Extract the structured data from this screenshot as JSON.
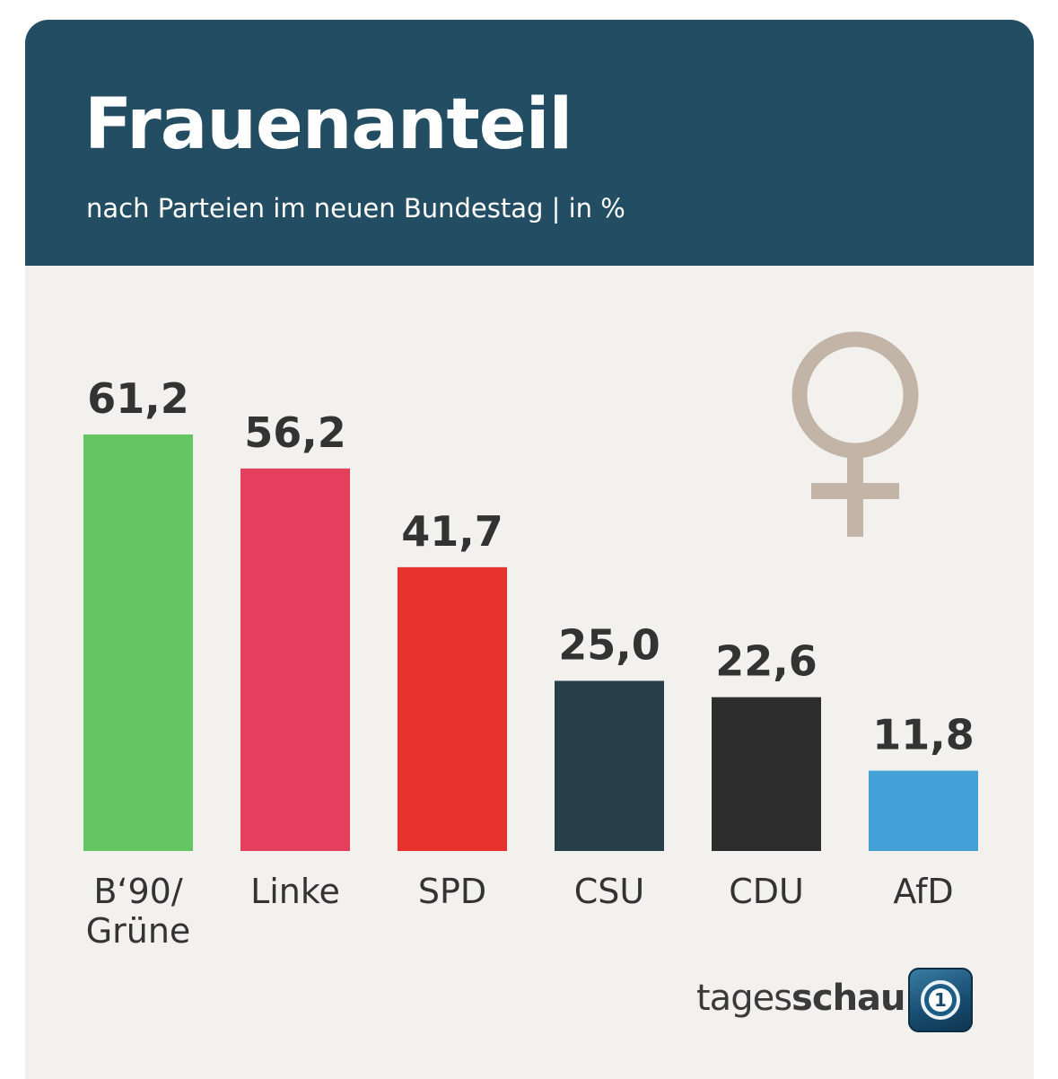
{
  "header": {
    "title": "Frauenanteil",
    "subtitle": "nach Parteien im neuen Bundestag | in %"
  },
  "brand": {
    "prefix": "tages",
    "suffix": "schau",
    "logo_glyph": "1"
  },
  "icons": {
    "female_symbol": "venus-icon",
    "female_symbol_color": "#c2b4a6"
  },
  "chart_data": {
    "type": "bar",
    "title": "Frauenanteil",
    "subtitle": "nach Parteien im neuen Bundestag | in %",
    "categories": [
      "B‘90/ Grüne",
      "Linke",
      "SPD",
      "CSU",
      "CDU",
      "AfD"
    ],
    "category_lines": [
      [
        "B‘90/",
        "Grüne"
      ],
      [
        "Linke"
      ],
      [
        "SPD"
      ],
      [
        "CSU"
      ],
      [
        "CDU"
      ],
      [
        "AfD"
      ]
    ],
    "values": [
      61.2,
      56.2,
      41.7,
      25.0,
      22.6,
      11.8
    ],
    "value_labels": [
      "61,2",
      "56,2",
      "41,7",
      "25,0",
      "22,6",
      "11,8"
    ],
    "colors": [
      "#64c662",
      "#e4405d",
      "#e6322a",
      "#263f49",
      "#2d2d2d",
      "#45a2d9"
    ],
    "ylim": [
      0,
      61.2
    ],
    "grid": false,
    "legend": "none"
  }
}
